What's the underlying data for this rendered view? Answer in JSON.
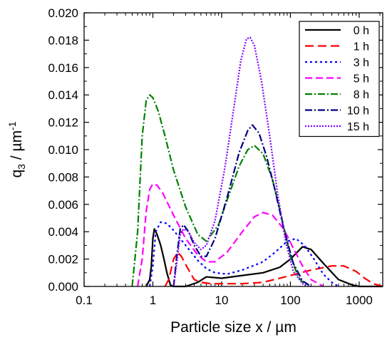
{
  "chart_data": {
    "type": "line",
    "title": "",
    "xlabel": "Particle size x / µm",
    "ylabel_main": "q",
    "ylabel_sub": "3",
    "ylabel_unit": " / µm",
    "ylabel_exp": "-1",
    "x_scale": "log",
    "xlim": [
      0.1,
      2200
    ],
    "ylim": [
      0.0,
      0.02
    ],
    "x_ticks": [
      0.1,
      1,
      10,
      100,
      1000
    ],
    "x_tick_labels": [
      "0.1",
      "1",
      "10",
      "100",
      "1000"
    ],
    "y_ticks": [
      0.0,
      0.002,
      0.004,
      0.006,
      0.008,
      0.01,
      0.012,
      0.014,
      0.016,
      0.018,
      0.02
    ],
    "y_tick_labels": [
      "0.000",
      "0.002",
      "0.004",
      "0.006",
      "0.008",
      "0.010",
      "0.012",
      "0.014",
      "0.016",
      "0.018",
      "0.020"
    ],
    "grid": false,
    "legend_position": "top-right",
    "series": [
      {
        "name": "0 h",
        "color": "#000000",
        "dash": "solid",
        "points": [
          [
            0.8,
            0
          ],
          [
            0.9,
            0.0005
          ],
          [
            0.95,
            0.0015
          ],
          [
            1.0,
            0.0035
          ],
          [
            1.05,
            0.0042
          ],
          [
            1.15,
            0.0038
          ],
          [
            1.3,
            0.003
          ],
          [
            1.45,
            0.002
          ],
          [
            1.6,
            0.001
          ],
          [
            1.8,
            0.0001
          ],
          [
            2,
            0
          ],
          [
            3,
            0
          ],
          [
            4.5,
            0.0003
          ],
          [
            6,
            0.0007
          ],
          [
            10,
            0.0006
          ],
          [
            20,
            0.0008
          ],
          [
            40,
            0.001
          ],
          [
            70,
            0.0014
          ],
          [
            100,
            0.002
          ],
          [
            150,
            0.0029
          ],
          [
            200,
            0.0027
          ],
          [
            300,
            0.0017
          ],
          [
            500,
            0.0005
          ],
          [
            800,
            0.0001
          ],
          [
            1000,
            0
          ],
          [
            2200,
            0
          ]
        ]
      },
      {
        "name": "1 h",
        "color": "#ff0000",
        "dash": "12,6",
        "points": [
          [
            1.5,
            0
          ],
          [
            1.7,
            0.0005
          ],
          [
            2,
            0.002
          ],
          [
            2.3,
            0.0025
          ],
          [
            2.6,
            0.0022
          ],
          [
            3,
            0.0016
          ],
          [
            3.5,
            0.001
          ],
          [
            4,
            0.0005
          ],
          [
            5,
            0.0003
          ],
          [
            7,
            0.0002
          ],
          [
            10,
            0.0002
          ],
          [
            20,
            0.0002
          ],
          [
            40,
            0.0003
          ],
          [
            70,
            0.0006
          ],
          [
            100,
            0.0008
          ],
          [
            200,
            0.0012
          ],
          [
            400,
            0.0015
          ],
          [
            600,
            0.0015
          ],
          [
            900,
            0.0011
          ],
          [
            1200,
            0.0006
          ],
          [
            1600,
            0.0002
          ],
          [
            2200,
            0
          ]
        ]
      },
      {
        "name": " 3 h",
        "color": "#0000ff",
        "dash": "3,4",
        "points": [
          [
            0.9,
            0
          ],
          [
            1.0,
            0.0015
          ],
          [
            1.1,
            0.004
          ],
          [
            1.3,
            0.0047
          ],
          [
            1.6,
            0.0046
          ],
          [
            2,
            0.0041
          ],
          [
            3,
            0.003
          ],
          [
            4.5,
            0.0019
          ],
          [
            6,
            0.0013
          ],
          [
            8,
            0.001
          ],
          [
            12,
            0.0009
          ],
          [
            20,
            0.0012
          ],
          [
            40,
            0.0018
          ],
          [
            60,
            0.0025
          ],
          [
            90,
            0.0033
          ],
          [
            120,
            0.0035
          ],
          [
            160,
            0.003
          ],
          [
            220,
            0.002
          ],
          [
            300,
            0.0009
          ],
          [
            400,
            0.0003
          ],
          [
            500,
            0
          ]
        ]
      },
      {
        "name": "5 h",
        "color": "#ff00ff",
        "dash": "10,5",
        "points": [
          [
            0.6,
            0
          ],
          [
            0.7,
            0.002
          ],
          [
            0.8,
            0.0055
          ],
          [
            0.9,
            0.0071
          ],
          [
            1.0,
            0.0075
          ],
          [
            1.15,
            0.0074
          ],
          [
            1.4,
            0.0068
          ],
          [
            2,
            0.0052
          ],
          [
            3,
            0.0035
          ],
          [
            4.5,
            0.0023
          ],
          [
            6,
            0.0018
          ],
          [
            8,
            0.0018
          ],
          [
            12,
            0.0025
          ],
          [
            20,
            0.004
          ],
          [
            30,
            0.0051
          ],
          [
            40,
            0.0054
          ],
          [
            55,
            0.0052
          ],
          [
            80,
            0.0042
          ],
          [
            110,
            0.0028
          ],
          [
            150,
            0.0015
          ],
          [
            200,
            0.0005
          ],
          [
            300,
            0
          ]
        ]
      },
      {
        "name": "8 h",
        "color": "#008000",
        "dash": "10,3,2,3",
        "points": [
          [
            0.5,
            0
          ],
          [
            0.6,
            0.004
          ],
          [
            0.7,
            0.011
          ],
          [
            0.8,
            0.0136
          ],
          [
            0.9,
            0.014
          ],
          [
            1.0,
            0.0138
          ],
          [
            1.2,
            0.0128
          ],
          [
            1.5,
            0.011
          ],
          [
            2,
            0.0085
          ],
          [
            3,
            0.0058
          ],
          [
            4.5,
            0.0038
          ],
          [
            6,
            0.0033
          ],
          [
            9,
            0.0045
          ],
          [
            13,
            0.0068
          ],
          [
            18,
            0.0088
          ],
          [
            24,
            0.01
          ],
          [
            30,
            0.0103
          ],
          [
            40,
            0.0097
          ],
          [
            55,
            0.0078
          ],
          [
            75,
            0.005
          ],
          [
            100,
            0.0022
          ],
          [
            130,
            0.0007
          ],
          [
            170,
            0
          ]
        ]
      },
      {
        "name": "10 h",
        "color": "#000080",
        "dash": "10,3,2,3",
        "points": [
          [
            2,
            0
          ],
          [
            2.2,
            0.002
          ],
          [
            2.5,
            0.0042
          ],
          [
            2.8,
            0.0045
          ],
          [
            3.3,
            0.004
          ],
          [
            4,
            0.003
          ],
          [
            5,
            0.0022
          ],
          [
            6,
            0.0022
          ],
          [
            8,
            0.0035
          ],
          [
            12,
            0.0065
          ],
          [
            18,
            0.0098
          ],
          [
            24,
            0.0114
          ],
          [
            28,
            0.0118
          ],
          [
            35,
            0.0112
          ],
          [
            45,
            0.0095
          ],
          [
            60,
            0.007
          ],
          [
            80,
            0.0042
          ],
          [
            110,
            0.0017
          ],
          [
            150,
            0.0004
          ],
          [
            200,
            0
          ]
        ]
      },
      {
        "name": "15 h",
        "color": "#8000ff",
        "dash": "2,2",
        "points": [
          [
            2,
            0
          ],
          [
            2.2,
            0.0015
          ],
          [
            2.5,
            0.0038
          ],
          [
            2.8,
            0.0042
          ],
          [
            3.3,
            0.004
          ],
          [
            4,
            0.0032
          ],
          [
            5,
            0.0027
          ],
          [
            6,
            0.003
          ],
          [
            8,
            0.0048
          ],
          [
            11,
            0.0085
          ],
          [
            15,
            0.013
          ],
          [
            19,
            0.0165
          ],
          [
            23,
            0.0181
          ],
          [
            26,
            0.0182
          ],
          [
            30,
            0.0176
          ],
          [
            38,
            0.015
          ],
          [
            50,
            0.011
          ],
          [
            65,
            0.0068
          ],
          [
            85,
            0.0033
          ],
          [
            110,
            0.0011
          ],
          [
            150,
            0.0002
          ],
          [
            200,
            0
          ]
        ]
      }
    ]
  }
}
